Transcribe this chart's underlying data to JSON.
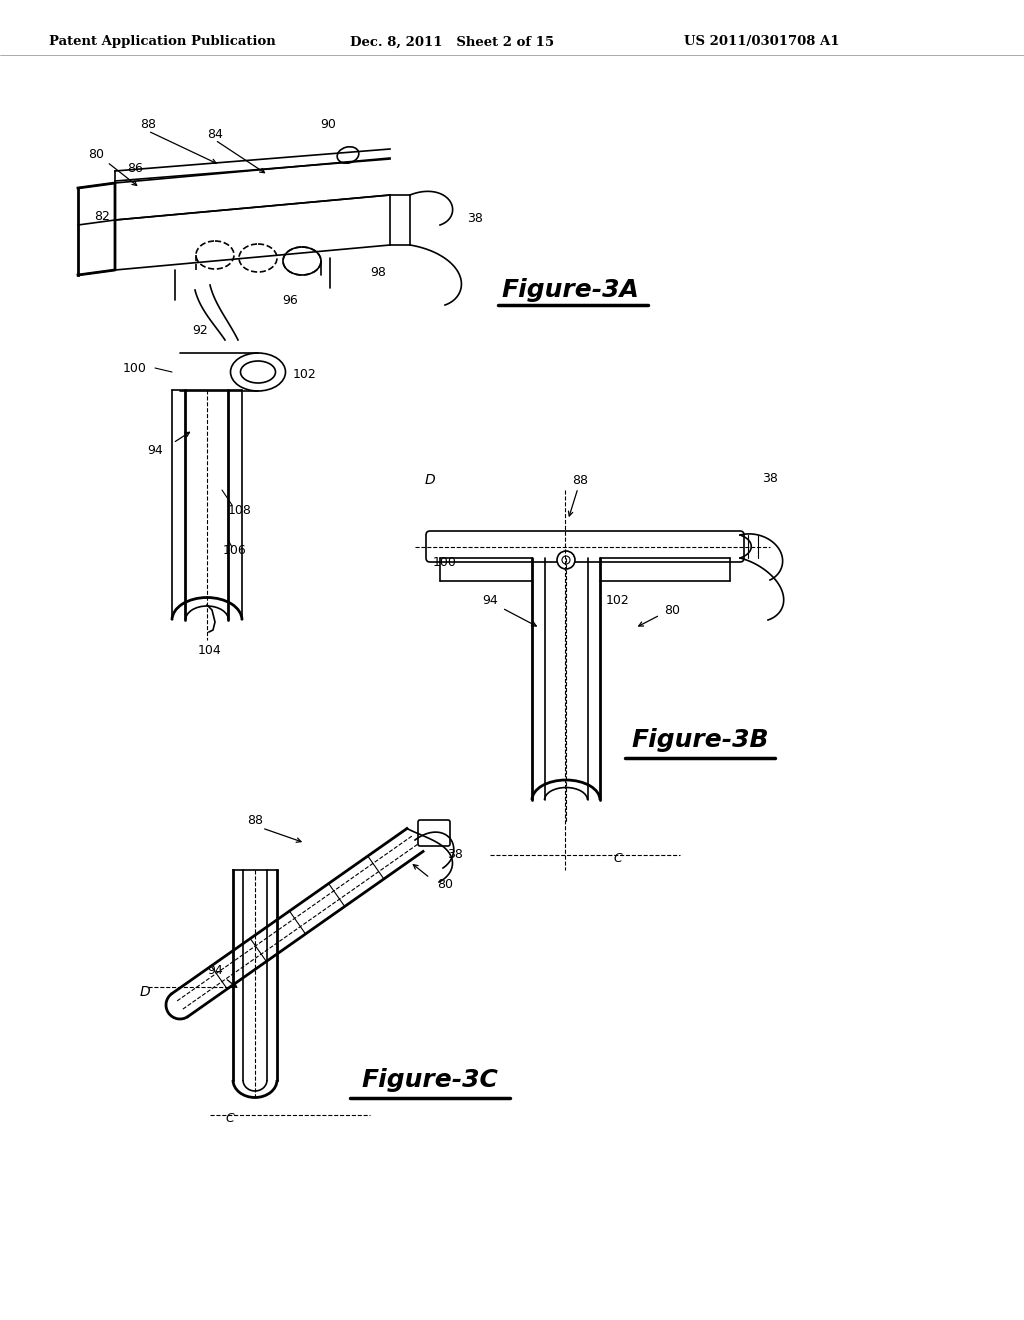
{
  "bg_color": "#ffffff",
  "line_color": "#000000",
  "header_left": "Patent Application Publication",
  "header_center": "Dec. 8, 2011   Sheet 2 of 15",
  "header_right": "US 2011/0301708 A1",
  "fig3a_label": "Figure-3A",
  "fig3b_label": "Figure-3B",
  "fig3c_label": "Figure-3C",
  "fig_width": 10.24,
  "fig_height": 13.2,
  "dpi": 100
}
